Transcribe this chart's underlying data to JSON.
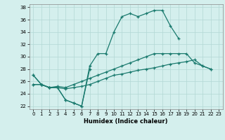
{
  "xlabel": "Humidex (Indice chaleur)",
  "background_color": "#d4efed",
  "grid_color": "#b2d8d4",
  "line_color": "#1a7a6e",
  "xlim": [
    -0.5,
    23.5
  ],
  "ylim": [
    21.5,
    38.5
  ],
  "xticks": [
    0,
    1,
    2,
    3,
    4,
    5,
    6,
    7,
    8,
    9,
    10,
    11,
    12,
    13,
    14,
    15,
    16,
    17,
    18,
    19,
    20,
    21,
    22,
    23
  ],
  "yticks": [
    22,
    24,
    26,
    28,
    30,
    32,
    34,
    36,
    38
  ],
  "line1_x": [
    0,
    1,
    2,
    3,
    4,
    5,
    6,
    7
  ],
  "line1_y": [
    27.0,
    25.5,
    25.0,
    25.0,
    23.0,
    22.5,
    22.0,
    28.0
  ],
  "line2_x": [
    0,
    1,
    2,
    3,
    4,
    5,
    6,
    7,
    8,
    9,
    10,
    11,
    12,
    13,
    14,
    15,
    16,
    17,
    18
  ],
  "line2_y": [
    27.0,
    25.5,
    25.0,
    25.0,
    23.0,
    22.5,
    22.0,
    28.5,
    30.5,
    30.5,
    34.0,
    36.5,
    37.0,
    36.5,
    37.0,
    37.5,
    37.5,
    35.0,
    33.0
  ],
  "line3_x": [
    0,
    1,
    2,
    3,
    4,
    5,
    6,
    7,
    8,
    9,
    10,
    11,
    12,
    13,
    14,
    15,
    16,
    17,
    18,
    19,
    20,
    21,
    22
  ],
  "line3_y": [
    25.5,
    25.5,
    25.0,
    25.2,
    25.0,
    25.5,
    26.0,
    26.5,
    27.0,
    27.5,
    28.0,
    28.5,
    29.0,
    29.5,
    30.0,
    30.5,
    30.5,
    30.5,
    30.5,
    30.5,
    29.0,
    28.5,
    28.0
  ],
  "line4_x": [
    0,
    1,
    2,
    3,
    4,
    5,
    6,
    7,
    8,
    9,
    10,
    11,
    12,
    13,
    14,
    15,
    16,
    17,
    18,
    19,
    20,
    21,
    22
  ],
  "line4_y": [
    25.5,
    25.5,
    25.0,
    25.0,
    24.8,
    25.0,
    25.2,
    25.5,
    26.0,
    26.5,
    27.0,
    27.2,
    27.5,
    27.8,
    28.0,
    28.2,
    28.5,
    28.8,
    29.0,
    29.2,
    29.5,
    28.5,
    28.0
  ]
}
